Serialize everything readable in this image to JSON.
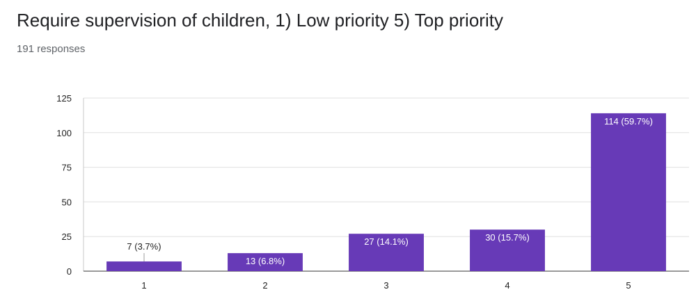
{
  "header": {
    "title": "Require supervision of children, 1) Low priority 5) Top priority",
    "responses": "191 responses"
  },
  "chart_data": {
    "type": "bar",
    "categories": [
      "1",
      "2",
      "3",
      "4",
      "5"
    ],
    "values": [
      7,
      13,
      27,
      30,
      114
    ],
    "data_labels": [
      "7 (3.7%)",
      "13 (6.8%)",
      "27 (14.1%)",
      "30 (15.7%)",
      "114 (59.7%)"
    ],
    "ylim": [
      0,
      125
    ],
    "yticks": [
      "0",
      "25",
      "50",
      "75",
      "100",
      "125"
    ],
    "grid": true,
    "bar_color": "#673ab7",
    "xlabel": "",
    "ylabel": ""
  }
}
